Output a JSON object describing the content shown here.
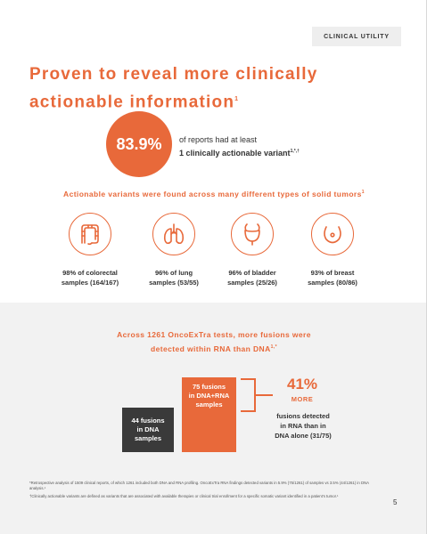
{
  "header": {
    "tag": "CLINICAL UTILITY"
  },
  "headline": {
    "line1": "Proven to reveal more clinically",
    "line2": "actionable information",
    "ref": "1"
  },
  "main_stat": {
    "value": "83.9%",
    "line1": "of reports had at least",
    "line2": "1 clinically actionable variant",
    "ref": "1,*,†"
  },
  "tumors": {
    "title": "Actionable variants were found across many different types of solid tumors",
    "ref": "1",
    "items": [
      {
        "icon": "colon-icon",
        "line1": "98% of colorectal",
        "line2": "samples (164/167)"
      },
      {
        "icon": "lungs-icon",
        "line1": "96% of lung",
        "line2": "samples (53/55)"
      },
      {
        "icon": "bladder-icon",
        "line1": "96% of bladder",
        "line2": "samples (25/26)"
      },
      {
        "icon": "breast-icon",
        "line1": "93% of breast",
        "line2": "samples (80/86)"
      }
    ]
  },
  "fusions": {
    "title_line1": "Across 1261 OncoExTra tests, more fusions were",
    "title_line2": "detected within RNA than DNA",
    "ref": "1,*",
    "dna_bar": {
      "line1": "44 fusions",
      "line2": "in DNA",
      "line3": "samples",
      "value": 44
    },
    "rna_bar": {
      "line1": "75 fusions",
      "line2": "in DNA+RNA",
      "line3": "samples",
      "value": 75
    },
    "percent": "41%",
    "more_label": "MORE",
    "desc_line1": "fusions detected",
    "desc_line2": "in RNA than in",
    "desc_line3": "DNA alone (31/75)",
    "colors": {
      "accent": "#e8693a",
      "dark": "#3a3a3a"
    }
  },
  "footnotes": {
    "fn1": "*Retrospective analysis of 1509 clinical reports, of which 1261 included both DNA and RNA profiling. OncoExTra RNA findings detected variants in 5.9% (75/1261) of samples vs 3.5% (44/1261) in DNA analysis.¹",
    "fn2": "†Clinically actionable variants are defined as variants that are associated with available therapies or clinical trial enrollment for a specific somatic variant identified in a patient's tumor.¹"
  },
  "page_number": "5"
}
